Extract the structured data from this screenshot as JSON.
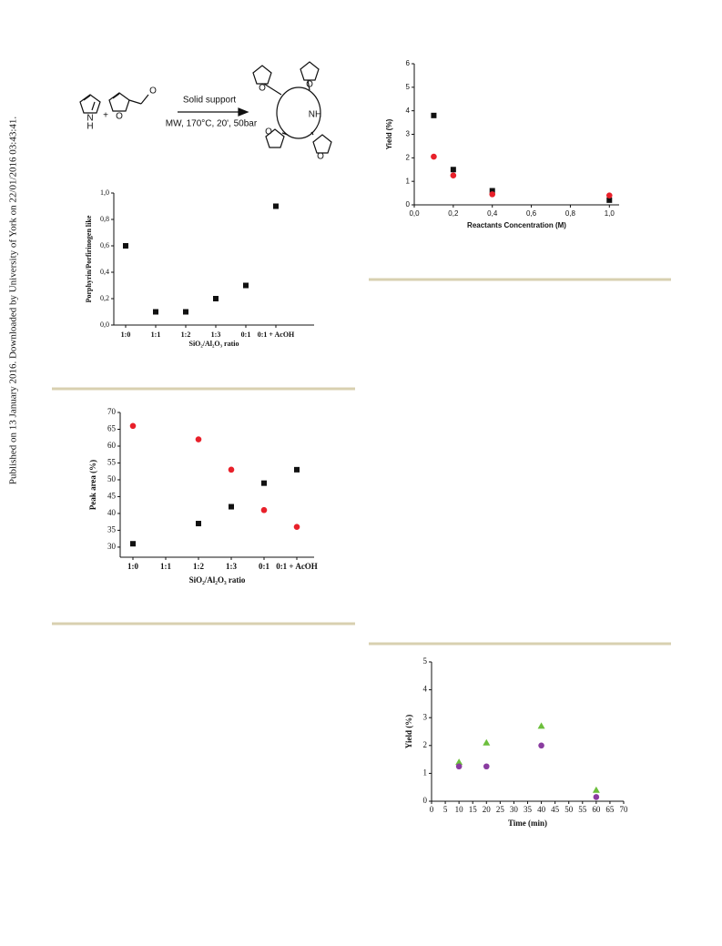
{
  "side_note": "Published on 13 January 2016. Downloaded by University of York on 22/01/2016 03:43:41.",
  "scheme": {
    "pyrrole_n": "N",
    "pyrrole_h": "H",
    "plus": "+",
    "o_label": "O",
    "condition_top": "Solid support",
    "condition_bottom": "MW, 170°C, 20', 50bar",
    "macro_nh": "NH"
  },
  "chart_data": [
    {
      "type": "scatter",
      "ylabel": "Porphyrin/Porfirinogen like",
      "xlabel": "SiO₂/Al₂O₃ ratio",
      "categories": [
        "1:0",
        "1:1",
        "1:2",
        "1:3",
        "0:1",
        "0:1 + AcOH"
      ],
      "series": [
        {
          "color": "#111111",
          "marker": "square",
          "values": [
            0.6,
            0.1,
            0.1,
            0.2,
            0.3,
            0.9
          ]
        }
      ],
      "ylim": [
        0,
        1.0
      ],
      "yticks": [
        {
          "value": 0,
          "label": "0,0"
        },
        {
          "value": 0.2,
          "label": "0,2"
        },
        {
          "value": 0.4,
          "label": "0,4"
        },
        {
          "value": 0.6,
          "label": "0,6"
        },
        {
          "value": 0.8,
          "label": "0,8"
        },
        {
          "value": 1.0,
          "label": "1,0"
        }
      ]
    },
    {
      "type": "scatter",
      "ylabel": "Yield (%)",
      "xlabel": "Reactants Concentration (M)",
      "x": [
        0.1,
        0.2,
        0.4,
        1.0
      ],
      "series": [
        {
          "color": "#111111",
          "marker": "square",
          "values": [
            3.8,
            1.5,
            0.6,
            0.2
          ]
        },
        {
          "color": "#e8202a",
          "marker": "circle",
          "values": [
            2.05,
            1.25,
            0.45,
            0.4
          ]
        }
      ],
      "xlim": [
        0,
        1.05
      ],
      "xticks": [
        {
          "value": 0,
          "label": "0,0"
        },
        {
          "value": 0.2,
          "label": "0,2"
        },
        {
          "value": 0.4,
          "label": "0,4"
        },
        {
          "value": 0.6,
          "label": "0,6"
        },
        {
          "value": 0.8,
          "label": "0,8"
        },
        {
          "value": 1.0,
          "label": "1,0"
        }
      ],
      "ylim": [
        0,
        6
      ],
      "yticks": [
        0,
        1,
        2,
        3,
        4,
        5,
        6
      ]
    },
    {
      "type": "scatter",
      "ylabel": "Peak area (%)",
      "xlabel": "SiO₂/Al₂O₃ ratio",
      "categories": [
        "1:0",
        "1:1",
        "1:2",
        "1:3",
        "0:1",
        "0:1 + AcOH"
      ],
      "series": [
        {
          "color": "#111111",
          "marker": "square",
          "values": [
            31,
            null,
            37,
            42,
            49,
            53
          ]
        },
        {
          "color": "#e8202a",
          "marker": "circle",
          "values": [
            66,
            null,
            62,
            53,
            41,
            36
          ]
        }
      ],
      "ylim": [
        27,
        70
      ],
      "yticks": [
        30,
        35,
        40,
        45,
        50,
        55,
        60,
        65,
        70
      ]
    },
    {
      "type": "scatter",
      "ylabel": "Yield (%)",
      "xlabel": "Time (min)",
      "x": [
        10,
        20,
        40,
        60
      ],
      "series": [
        {
          "color": "#6cbf3c",
          "marker": "triangle",
          "values": [
            1.4,
            2.1,
            2.7,
            0.4
          ]
        },
        {
          "color": "#8a3ca0",
          "marker": "circle",
          "values": [
            1.25,
            1.25,
            2.0,
            0.15
          ]
        }
      ],
      "xlim": [
        0,
        70
      ],
      "xticks": [
        0,
        5,
        10,
        15,
        20,
        25,
        30,
        35,
        40,
        45,
        50,
        55,
        60,
        65,
        70
      ],
      "ylim": [
        0,
        5
      ],
      "yticks": [
        0,
        1,
        2,
        3,
        4,
        5
      ]
    }
  ]
}
